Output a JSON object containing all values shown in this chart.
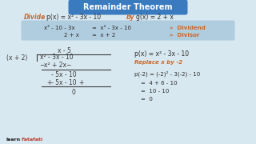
{
  "title": "Remainder Theorem",
  "title_bg": "#3a7abf",
  "title_color": "#ffffff",
  "bg_color": "#d8e8f0",
  "divide_text": "Divide",
  "divide_color": "#c8692b",
  "px_expr": "p(x) = x² - 3x - 10",
  "px_color": "#2c2c2c",
  "by_text": "by",
  "by_color": "#c8692b",
  "gx_expr": "g(x) = 2 + x",
  "gx_color": "#2c2c2c",
  "box_bg": "#b0ccdf",
  "box_line1_a": "x² - 10 - 3x",
  "box_line1_b": "=  x² - 3x - 10",
  "box_line1_suffix": "»  Dividend",
  "box_line2_a": "2 + x",
  "box_line2_b": "=  x + 2",
  "box_line2_suffix": "»  Divisor",
  "suffix_color": "#c8692b",
  "box_text_color": "#2c2c2c",
  "long_div_divisor": "(x + 2)",
  "long_div_quotient": "x - 5",
  "long_div_dividend": "x² - 3x - 10",
  "long_div_step1": "x² + 2x",
  "long_div_step2": "- 5x - 10",
  "long_div_step3": "- 5x - 10",
  "long_div_remainder": "0",
  "right_line1": "p(x) = x² - 3x - 10",
  "right_line2": "Replace x by -2",
  "right_line2_color": "#c8692b",
  "right_line3": "p(-2) = (-2)² - 3(-2) - 10",
  "right_line4": "=  4 + 6 - 10",
  "right_line5": "=  10 - 10",
  "right_line6": "=  0",
  "right_text_color": "#2c2c2c",
  "math_color": "#3a3a3a",
  "watermark_color_learn": "#1a1a1a",
  "watermark_color_fatafati": "#c0392b"
}
